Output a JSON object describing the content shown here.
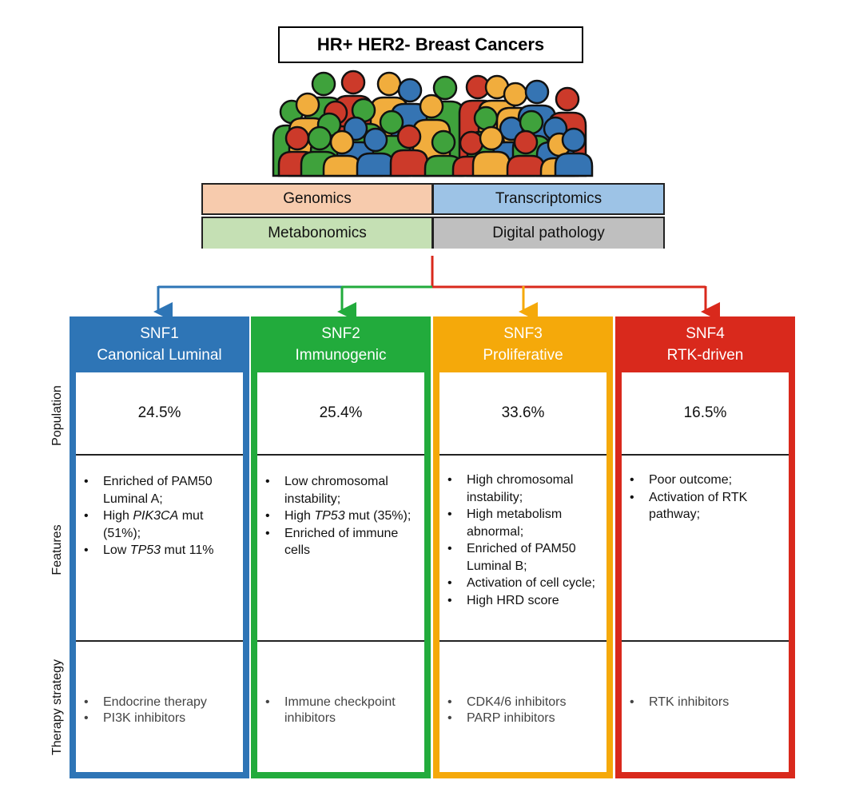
{
  "title": "HR+ HER2- Breast Cancers",
  "omics": [
    "Genomics",
    "Transcriptomics",
    "Metabonomics",
    "Digital pathology"
  ],
  "omic_colors": [
    "#f7cbad",
    "#9dc3e6",
    "#c5e0b4",
    "#bfbfbf"
  ],
  "row_labels": [
    "Population",
    "Features",
    "Therapy strategy"
  ],
  "clusters": [
    {
      "id": "SNF1",
      "name": "Canonical Luminal",
      "color": "#2e75b6",
      "population": "24.5%",
      "features": [
        {
          "pre": "Enriched of PAM50 Luminal A;",
          "em": "",
          "post": ""
        },
        {
          "pre": "High ",
          "em": "PIK3CA",
          "post": " mut (51%);"
        },
        {
          "pre": "Low ",
          "em": "TP53",
          "post": " mut 11%"
        }
      ],
      "therapy": [
        "Endocrine therapy",
        "PI3K inhibitors"
      ]
    },
    {
      "id": "SNF2",
      "name": "Immunogenic",
      "color": "#22ab3c",
      "population": "25.4%",
      "features": [
        {
          "pre": "Low chromosomal instability;",
          "em": "",
          "post": ""
        },
        {
          "pre": "High ",
          "em": "TP53",
          "post": " mut (35%);"
        },
        {
          "pre": "Enriched of immune cells",
          "em": "",
          "post": ""
        }
      ],
      "therapy": [
        "Immune checkpoint inhibitors"
      ]
    },
    {
      "id": "SNF3",
      "name": "Proliferative",
      "color": "#f5a90a",
      "population": "33.6%",
      "features": [
        {
          "pre": "High chromosomal instability;",
          "em": "",
          "post": ""
        },
        {
          "pre": "High metabolism abnormal;",
          "em": "",
          "post": ""
        },
        {
          "pre": "Enriched of PAM50 Luminal B;",
          "em": "",
          "post": ""
        },
        {
          "pre": "Activation of cell cycle;",
          "em": "",
          "post": ""
        },
        {
          "pre": "High HRD score",
          "em": "",
          "post": ""
        }
      ],
      "therapy": [
        "CDK4/6 inhibitors",
        "PARP inhibitors"
      ]
    },
    {
      "id": "SNF4",
      "name": "RTK-driven",
      "color": "#d9291c",
      "population": "16.5%",
      "features": [
        {
          "pre": "Poor outcome;",
          "em": "",
          "post": ""
        },
        {
          "pre": "Activation of RTK pathway;",
          "em": "",
          "post": ""
        }
      ],
      "therapy": [
        "RTK inhibitors"
      ]
    }
  ],
  "people_colors": [
    "#3fa23c",
    "#cc3a2a",
    "#f1ad3d",
    "#3574b3"
  ]
}
